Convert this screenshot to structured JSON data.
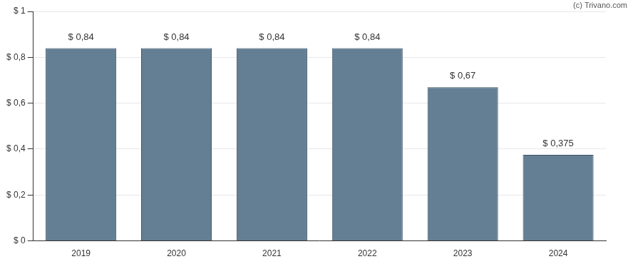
{
  "chart_data": {
    "type": "bar",
    "annotations": [
      "(c) Trivano.com"
    ],
    "categories": [
      "2019",
      "2020",
      "2021",
      "2022",
      "2023",
      "2024"
    ],
    "values": [
      0.84,
      0.84,
      0.84,
      0.84,
      0.67,
      0.375
    ],
    "value_labels": [
      "$ 0,84",
      "$ 0,84",
      "$ 0,84",
      "$ 0,84",
      "$ 0,67",
      "$ 0,375"
    ],
    "color": "#647f93",
    "ylim": [
      0,
      1
    ],
    "yticks": [
      {
        "value": 0,
        "label": "$ 0"
      },
      {
        "value": 0.2,
        "label": "$ 0,2"
      },
      {
        "value": 0.4,
        "label": "$ 0,4"
      },
      {
        "value": 0.6,
        "label": "$ 0,6"
      },
      {
        "value": 0.8,
        "label": "$ 0,8"
      },
      {
        "value": 1,
        "label": "$ 1"
      }
    ],
    "grid": true,
    "data_labels": true
  }
}
